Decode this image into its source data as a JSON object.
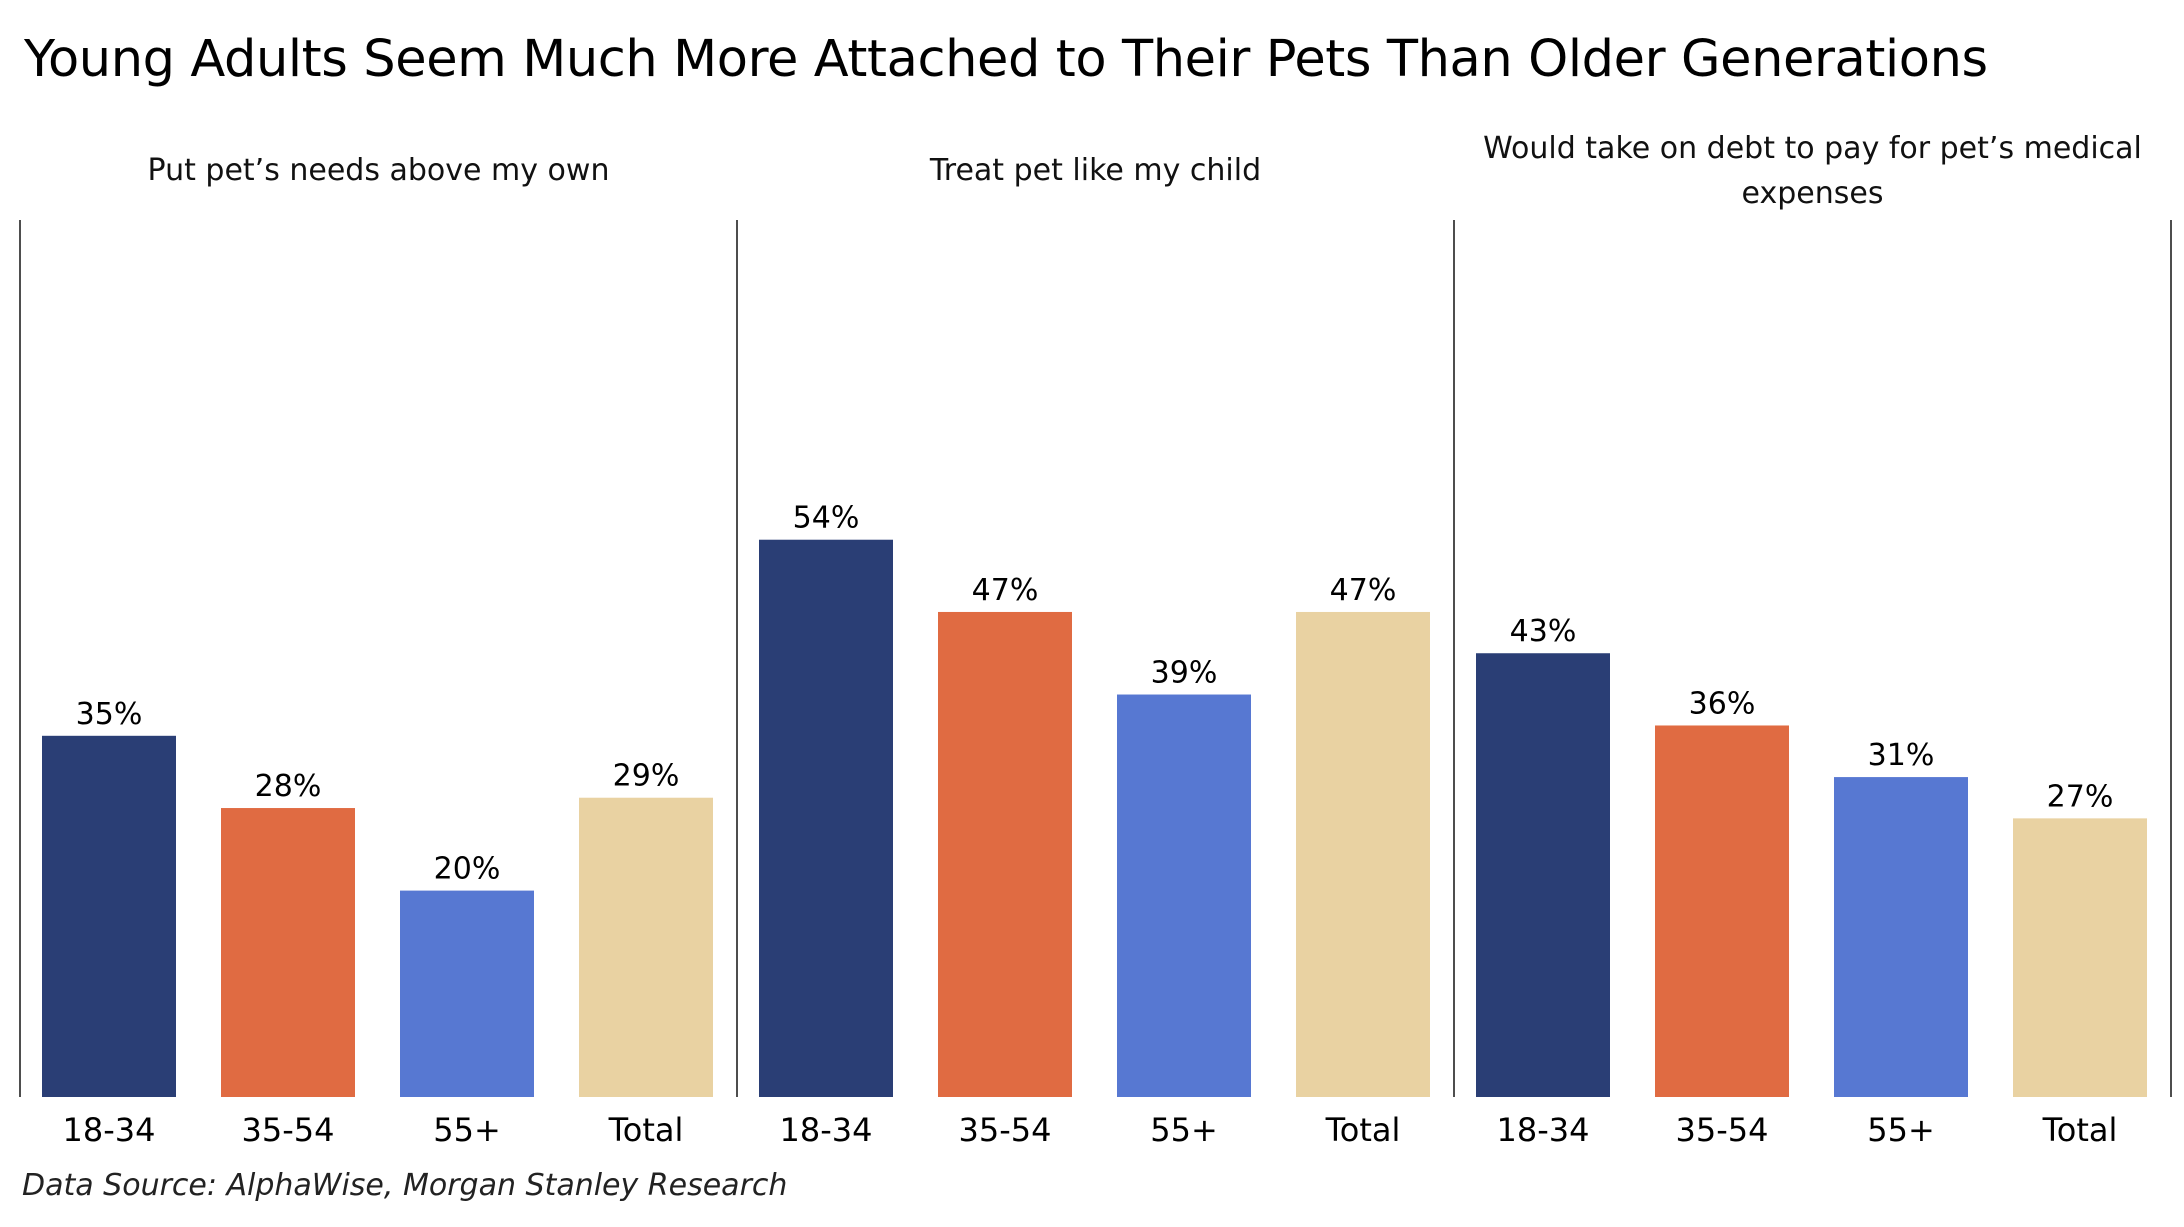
{
  "title": "Young Adults Seem Much More Attached to Their Pets Than Older Generations",
  "footer": "Data Source: AlphaWise, Morgan Stanley Research",
  "colors": {
    "18-34": "#2a3e75",
    "35-54": "#e06b42",
    "55+": "#5778d2",
    "Total": "#e9d2a2"
  },
  "chart_data": {
    "type": "bar",
    "ylim": [
      0,
      60
    ],
    "value_suffix": "%",
    "grid": false,
    "panels": [
      {
        "title": [
          "Put pet’s needs above my own"
        ],
        "categories": [
          "18-34",
          "35-54",
          "55+",
          "Total"
        ],
        "values": [
          35,
          28,
          20,
          29
        ]
      },
      {
        "title": [
          "Treat pet like my child"
        ],
        "categories": [
          "18-34",
          "35-54",
          "55+",
          "Total"
        ],
        "values": [
          54,
          47,
          39,
          47
        ]
      },
      {
        "title": [
          "Would take on debt to pay for pet’s medical",
          "expenses"
        ],
        "categories": [
          "18-34",
          "35-54",
          "55+",
          "Total"
        ],
        "values": [
          43,
          36,
          31,
          27
        ]
      }
    ]
  }
}
